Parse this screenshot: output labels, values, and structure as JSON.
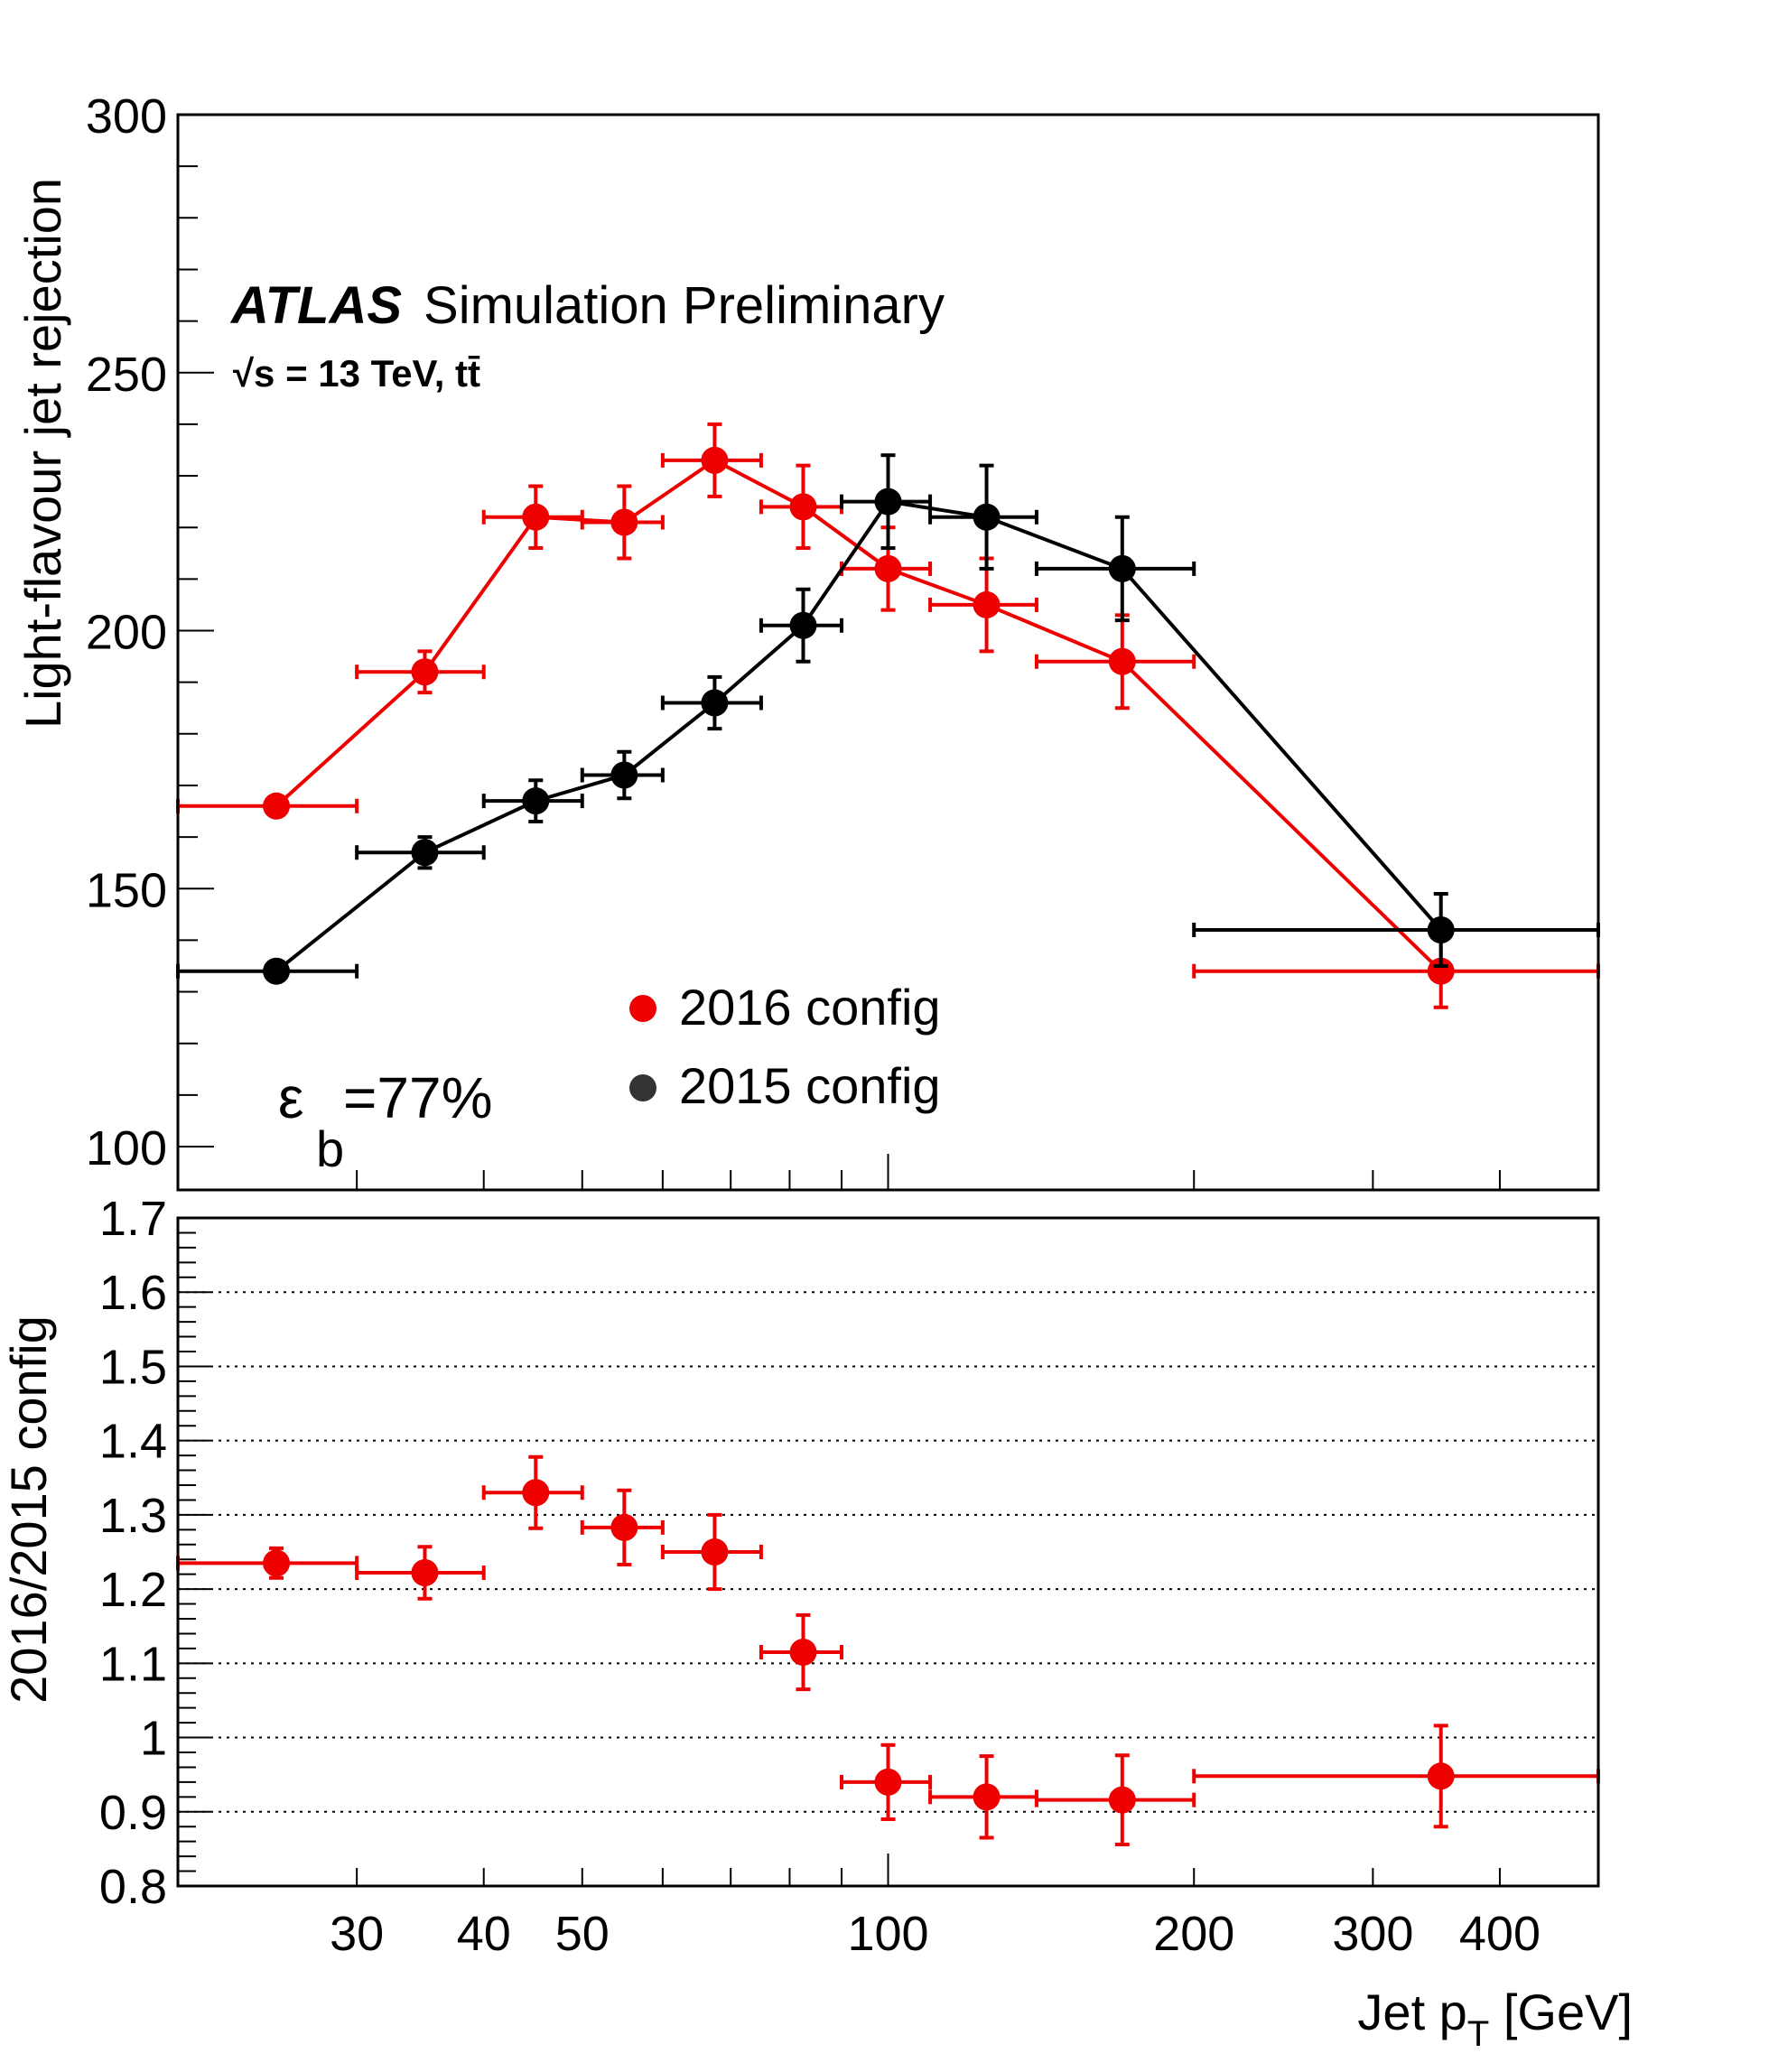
{
  "colors": {
    "series_2016": "#ee0000",
    "series_2015": "#000000",
    "grid": "#000000"
  },
  "annotations": {
    "atlas": "ATLAS",
    "simulation": "Simulation Preliminary",
    "energy": "√s = 13 TeV, tt̄",
    "efficiency_symbol": "ε",
    "efficiency_sub": "b",
    "efficiency_value": "=77%"
  },
  "legend": [
    {
      "label": "2016 config",
      "color": "#ee0000"
    },
    {
      "label": "2015 config",
      "color": "#333333"
    }
  ],
  "chart_data": [
    {
      "type": "scatter",
      "title": "",
      "xlabel": "Jet p_T [GeV]",
      "ylabel": "Light-flavour jet rejection",
      "xscale": "log",
      "xlim": [
        20,
        500
      ],
      "ylim": [
        95,
        300
      ],
      "yticks": [
        100,
        150,
        200,
        250,
        300
      ],
      "series": [
        {
          "name": "2016 config",
          "color": "#ee0000",
          "points": [
            {
              "x": 25,
              "xlo": 20,
              "xhi": 30,
              "y": 166,
              "yerr": 1.5
            },
            {
              "x": 35,
              "xlo": 30,
              "xhi": 40,
              "y": 192,
              "yerr": 4
            },
            {
              "x": 45,
              "xlo": 40,
              "xhi": 50,
              "y": 222,
              "yerr": 6
            },
            {
              "x": 55,
              "xlo": 50,
              "xhi": 60,
              "y": 221,
              "yerr": 7
            },
            {
              "x": 67.5,
              "xlo": 60,
              "xhi": 75,
              "y": 233,
              "yerr": 7
            },
            {
              "x": 82.5,
              "xlo": 75,
              "xhi": 90,
              "y": 224,
              "yerr": 8
            },
            {
              "x": 100,
              "xlo": 90,
              "xhi": 110,
              "y": 212,
              "yerr": 8
            },
            {
              "x": 125,
              "xlo": 110,
              "xhi": 140,
              "y": 205,
              "yerr": 9
            },
            {
              "x": 170,
              "xlo": 140,
              "xhi": 200,
              "y": 194,
              "yerr": 9
            },
            {
              "x": 350,
              "xlo": 200,
              "xhi": 500,
              "y": 134,
              "yerr": 7
            }
          ]
        },
        {
          "name": "2015 config",
          "color": "#000000",
          "points": [
            {
              "x": 25,
              "xlo": 20,
              "xhi": 30,
              "y": 134,
              "yerr": 1
            },
            {
              "x": 35,
              "xlo": 30,
              "xhi": 40,
              "y": 157,
              "yerr": 3
            },
            {
              "x": 45,
              "xlo": 40,
              "xhi": 50,
              "y": 167,
              "yerr": 4
            },
            {
              "x": 55,
              "xlo": 50,
              "xhi": 60,
              "y": 172,
              "yerr": 4.5
            },
            {
              "x": 67.5,
              "xlo": 60,
              "xhi": 75,
              "y": 186,
              "yerr": 5
            },
            {
              "x": 82.5,
              "xlo": 75,
              "xhi": 90,
              "y": 201,
              "yerr": 7
            },
            {
              "x": 100,
              "xlo": 90,
              "xhi": 110,
              "y": 225,
              "yerr": 9
            },
            {
              "x": 125,
              "xlo": 110,
              "xhi": 140,
              "y": 222,
              "yerr": 10
            },
            {
              "x": 170,
              "xlo": 140,
              "xhi": 200,
              "y": 212,
              "yerr": 10
            },
            {
              "x": 350,
              "xlo": 200,
              "xhi": 500,
              "y": 142,
              "yerr": 7
            }
          ]
        }
      ]
    },
    {
      "type": "scatter",
      "title": "",
      "xlabel": "Jet p_T [GeV]",
      "ylabel": "2016/2015 config",
      "xscale": "log",
      "xlim": [
        20,
        500
      ],
      "ylim": [
        0.8,
        1.7
      ],
      "yticks": [
        0.8,
        0.9,
        1,
        1.1,
        1.2,
        1.3,
        1.4,
        1.5,
        1.6,
        1.7
      ],
      "ytick_labels": [
        "0.8",
        "0.9",
        "1",
        "1.1",
        "1.2",
        "1.3",
        "1.4",
        "1.5",
        "1.6",
        "1.7"
      ],
      "xticks": [
        30,
        40,
        50,
        100,
        200,
        300,
        400
      ],
      "xtick_labels": [
        "30",
        "40",
        "50",
        "100",
        "200",
        "300",
        "400"
      ],
      "grid": true,
      "series": [
        {
          "name": "2016/2015",
          "color": "#ee0000",
          "points": [
            {
              "x": 25,
              "xlo": 20,
              "xhi": 30,
              "y": 1.235,
              "yerr": 0.02
            },
            {
              "x": 35,
              "xlo": 30,
              "xhi": 40,
              "y": 1.222,
              "yerr": 0.035
            },
            {
              "x": 45,
              "xlo": 40,
              "xhi": 50,
              "y": 1.33,
              "yerr": 0.048
            },
            {
              "x": 55,
              "xlo": 50,
              "xhi": 60,
              "y": 1.283,
              "yerr": 0.05
            },
            {
              "x": 67.5,
              "xlo": 60,
              "xhi": 75,
              "y": 1.25,
              "yerr": 0.05
            },
            {
              "x": 82.5,
              "xlo": 75,
              "xhi": 90,
              "y": 1.115,
              "yerr": 0.05
            },
            {
              "x": 100,
              "xlo": 90,
              "xhi": 110,
              "y": 0.94,
              "yerr": 0.05
            },
            {
              "x": 125,
              "xlo": 110,
              "xhi": 140,
              "y": 0.92,
              "yerr": 0.055
            },
            {
              "x": 170,
              "xlo": 140,
              "xhi": 200,
              "y": 0.916,
              "yerr": 0.06
            },
            {
              "x": 350,
              "xlo": 200,
              "xhi": 500,
              "y": 0.948,
              "yerr": 0.068
            }
          ]
        }
      ]
    }
  ]
}
